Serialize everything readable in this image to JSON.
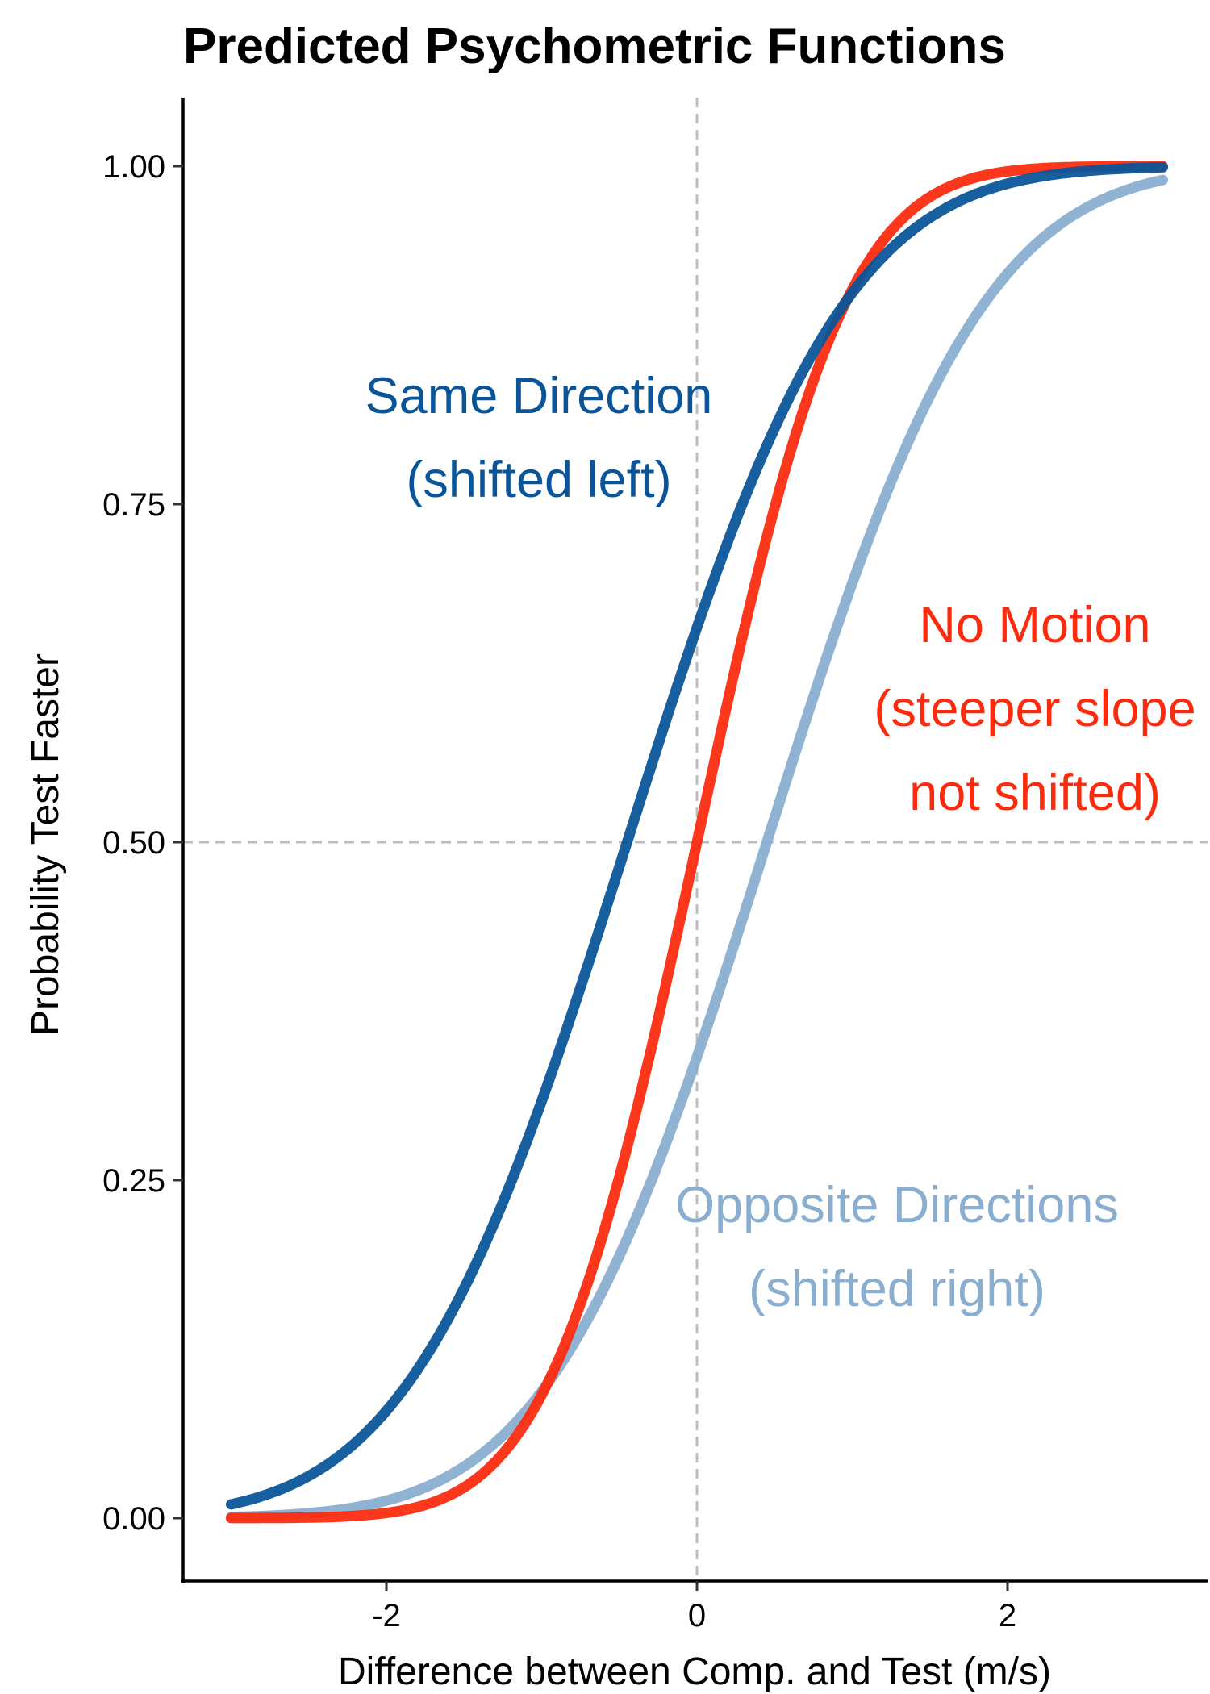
{
  "chart_data": {
    "type": "line",
    "title": "Predicted Psychometric Functions",
    "xlabel": "Difference between Comp. and Test (m/s)",
    "ylabel": "Probability Test Faster",
    "xlim": [
      -3.3,
      3.3
    ],
    "ylim": [
      -0.05,
      1.05
    ],
    "x_ticks": [
      -2,
      0,
      2
    ],
    "x_tick_labels": [
      "-2",
      "0",
      "2"
    ],
    "y_ticks": [
      0,
      0.25,
      0.5,
      0.75,
      1
    ],
    "y_tick_labels": [
      "0.00",
      "0.25",
      "0.50",
      "0.75",
      "1.00"
    ],
    "grid": false,
    "reference_lines": {
      "vertical_x": 0,
      "horizontal_y": 0.5
    },
    "x_range": [
      -3,
      3
    ],
    "series": [
      {
        "key": "opposite",
        "color": "#89aed0",
        "mu": 0.45,
        "sigma": 1.1,
        "points": [
          [
            -3,
            0.01
          ],
          [
            -2.5,
            0.021
          ],
          [
            -2,
            0.044
          ],
          [
            -1.5,
            0.088
          ],
          [
            -1,
            0.16
          ],
          [
            -0.5,
            0.27
          ],
          [
            0,
            0.408
          ],
          [
            0.5,
            0.55
          ],
          [
            1,
            0.69
          ],
          [
            1.5,
            0.82
          ],
          [
            2,
            0.92
          ],
          [
            2.5,
            0.95
          ],
          [
            3,
            0.98
          ]
        ]
      },
      {
        "key": "no-motion",
        "color": "#fc2b0e",
        "mu": 0,
        "sigma": 0.75,
        "points": [
          [
            -3,
            0.001
          ],
          [
            -2.5,
            0.01
          ],
          [
            -2,
            0.035
          ],
          [
            -1.5,
            0.094
          ],
          [
            -1,
            0.23
          ],
          [
            -0.5,
            0.36
          ],
          [
            0,
            0.5
          ],
          [
            0.5,
            0.74
          ],
          [
            1,
            0.84
          ],
          [
            1.5,
            0.94
          ],
          [
            2,
            0.97
          ],
          [
            2.5,
            0.99
          ],
          [
            3,
            1.0
          ]
        ]
      },
      {
        "key": "same",
        "color": "#0a5599",
        "mu": -0.45,
        "sigma": 1.1,
        "points": [
          [
            -3,
            0.03
          ],
          [
            -2.5,
            0.08
          ],
          [
            -2,
            0.13
          ],
          [
            -1.5,
            0.2
          ],
          [
            -1,
            0.3
          ],
          [
            -0.5,
            0.45
          ],
          [
            0,
            0.59
          ],
          [
            0.5,
            0.73
          ],
          [
            1,
            0.85
          ],
          [
            1.5,
            0.93
          ],
          [
            2,
            0.97
          ],
          [
            2.5,
            0.99
          ],
          [
            3,
            0.99
          ]
        ]
      }
    ],
    "annotations": [
      {
        "key": "same",
        "lines": [
          "Same Direction",
          "(shifted left)"
        ],
        "color": "#0a5599"
      },
      {
        "key": "no-motion",
        "lines": [
          "No Motion",
          "(steeper slope",
          "not shifted)"
        ],
        "color": "#fc2b0e"
      },
      {
        "key": "opposite",
        "lines": [
          "Opposite Directions",
          "(shifted right)"
        ],
        "color": "#89aed0"
      }
    ]
  }
}
